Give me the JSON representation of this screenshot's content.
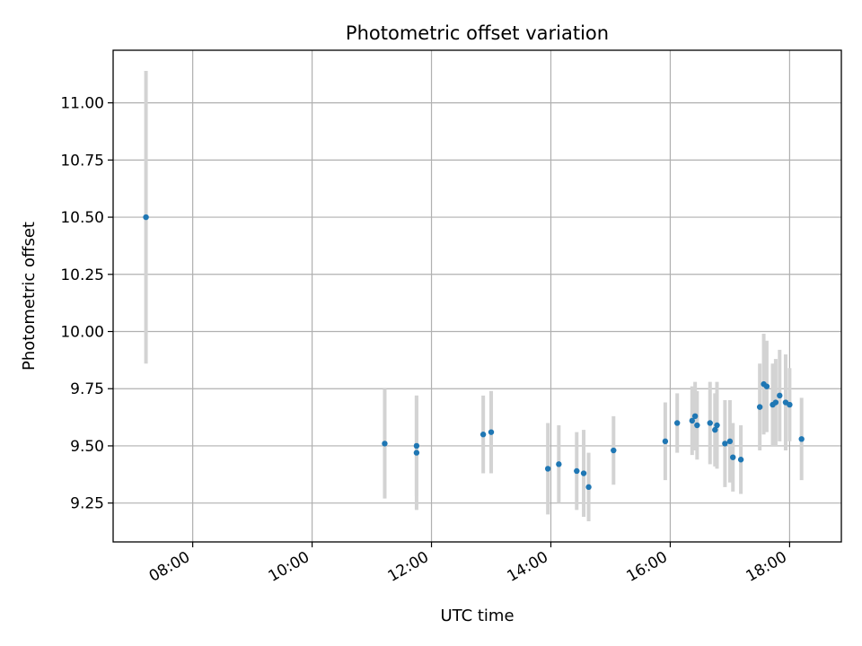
{
  "chart_data": {
    "type": "scatter",
    "title": "Photometric offset variation",
    "xlabel": "UTC time",
    "ylabel": "Photometric offset",
    "x_ticks": [
      "08:00",
      "10:00",
      "12:00",
      "14:00",
      "16:00",
      "18:00"
    ],
    "y_ticks": [
      "9.25",
      "9.50",
      "9.75",
      "10.00",
      "10.25",
      "10.50",
      "10.75",
      "11.00"
    ],
    "xlim": [
      "06:40",
      "18:52"
    ],
    "ylim": [
      9.08,
      11.23
    ],
    "grid": true,
    "point_color": "#1f77b4",
    "errorbar_color": "#d3d3d3",
    "points": [
      {
        "x": "07:13",
        "y": 10.5,
        "yerr": 0.64
      },
      {
        "x": "11:13",
        "y": 9.51,
        "yerr": 0.24
      },
      {
        "x": "11:45",
        "y": 9.5,
        "yerr": 0.22
      },
      {
        "x": "11:45",
        "y": 9.47,
        "yerr": 0.25
      },
      {
        "x": "12:52",
        "y": 9.55,
        "yerr": 0.17
      },
      {
        "x": "13:00",
        "y": 9.56,
        "yerr": 0.18
      },
      {
        "x": "13:57",
        "y": 9.4,
        "yerr": 0.2
      },
      {
        "x": "14:08",
        "y": 9.42,
        "yerr": 0.17
      },
      {
        "x": "14:26",
        "y": 9.39,
        "yerr": 0.17
      },
      {
        "x": "14:33",
        "y": 9.38,
        "yerr": 0.19
      },
      {
        "x": "14:38",
        "y": 9.32,
        "yerr": 0.15
      },
      {
        "x": "15:03",
        "y": 9.48,
        "yerr": 0.15
      },
      {
        "x": "15:55",
        "y": 9.52,
        "yerr": 0.17
      },
      {
        "x": "16:07",
        "y": 9.6,
        "yerr": 0.13
      },
      {
        "x": "16:22",
        "y": 9.61,
        "yerr": 0.15
      },
      {
        "x": "16:25",
        "y": 9.63,
        "yerr": 0.15
      },
      {
        "x": "16:27",
        "y": 9.59,
        "yerr": 0.15
      },
      {
        "x": "16:40",
        "y": 9.6,
        "yerr": 0.18
      },
      {
        "x": "16:45",
        "y": 9.57,
        "yerr": 0.16
      },
      {
        "x": "16:47",
        "y": 9.59,
        "yerr": 0.19
      },
      {
        "x": "16:55",
        "y": 9.51,
        "yerr": 0.19
      },
      {
        "x": "17:00",
        "y": 9.52,
        "yerr": 0.18
      },
      {
        "x": "17:03",
        "y": 9.45,
        "yerr": 0.15
      },
      {
        "x": "17:11",
        "y": 9.44,
        "yerr": 0.15
      },
      {
        "x": "17:30",
        "y": 9.67,
        "yerr": 0.19
      },
      {
        "x": "17:34",
        "y": 9.77,
        "yerr": 0.22
      },
      {
        "x": "17:37",
        "y": 9.76,
        "yerr": 0.2
      },
      {
        "x": "17:43",
        "y": 9.68,
        "yerr": 0.18
      },
      {
        "x": "17:46",
        "y": 9.69,
        "yerr": 0.19
      },
      {
        "x": "17:50",
        "y": 9.72,
        "yerr": 0.2
      },
      {
        "x": "17:56",
        "y": 9.69,
        "yerr": 0.21
      },
      {
        "x": "18:00",
        "y": 9.68,
        "yerr": 0.16
      },
      {
        "x": "18:12",
        "y": 9.53,
        "yerr": 0.18
      }
    ]
  }
}
